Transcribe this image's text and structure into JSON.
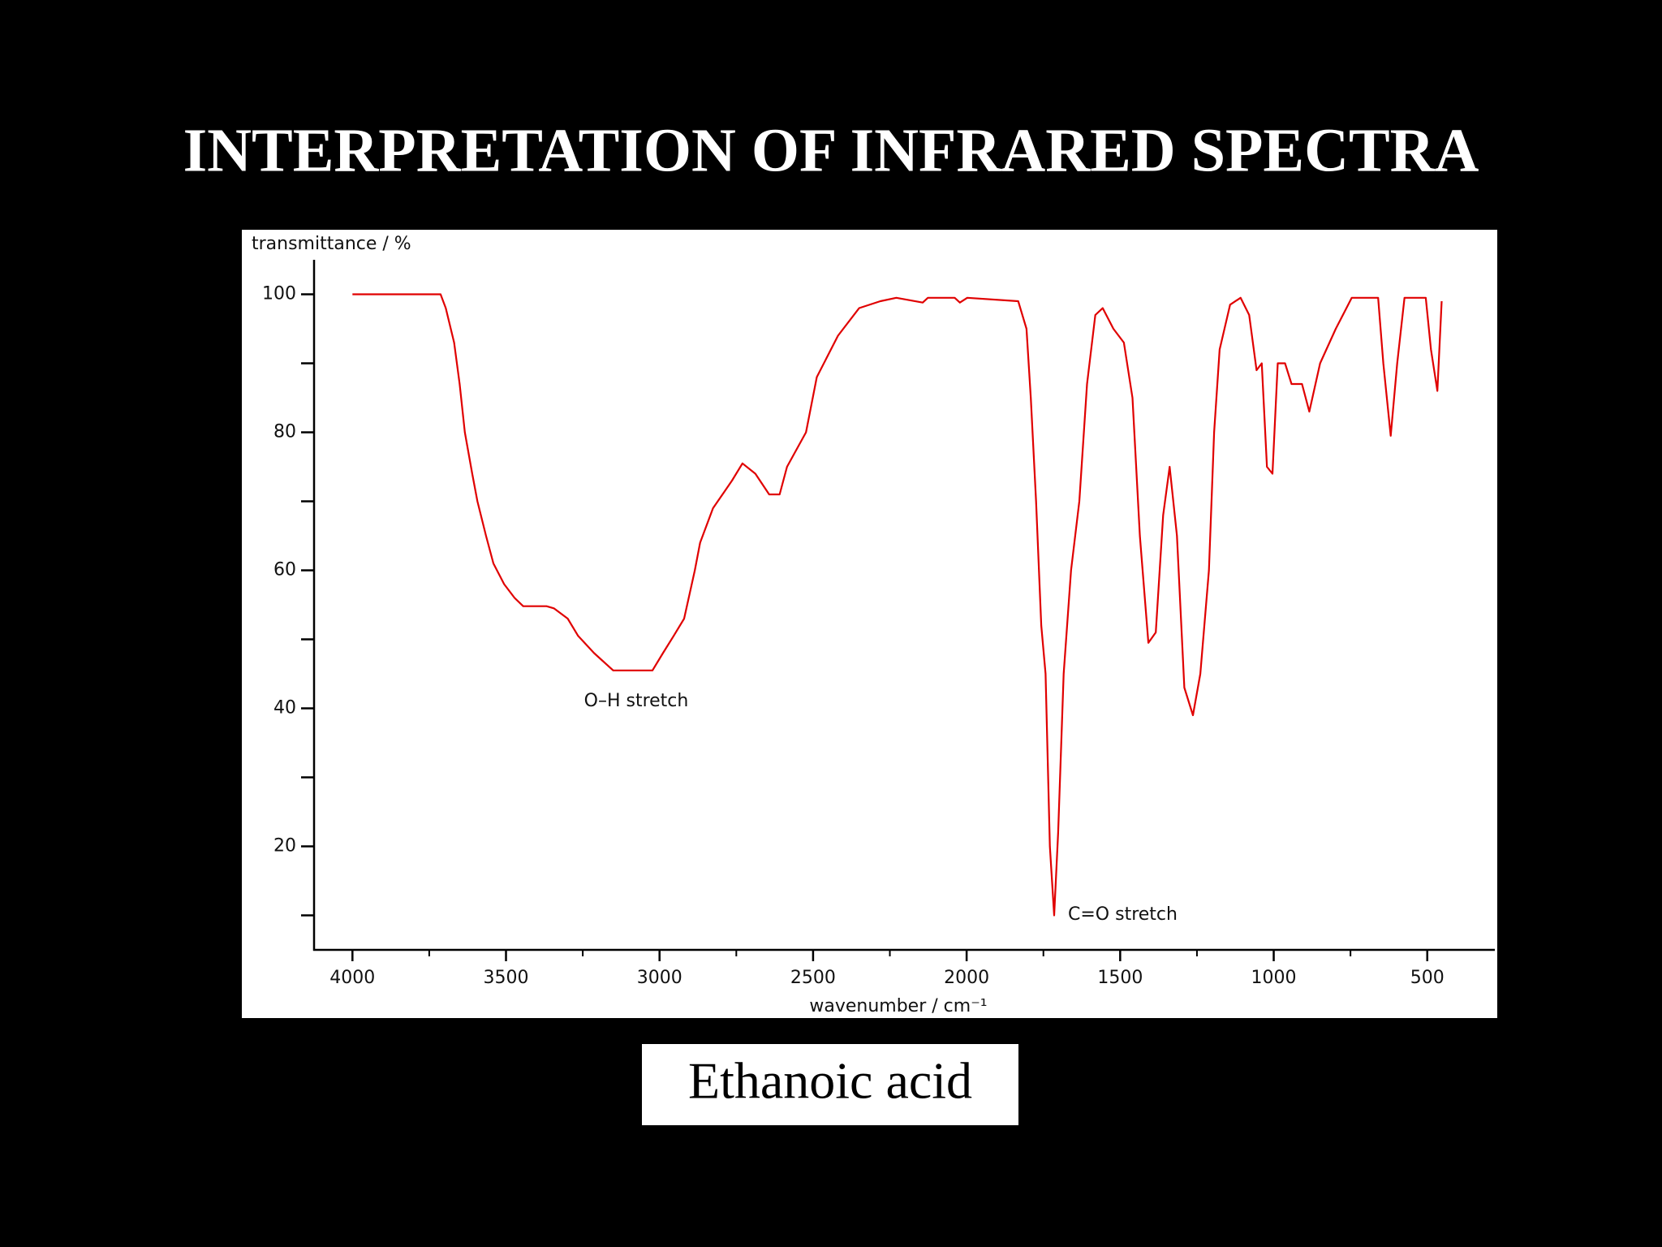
{
  "title": "INTERPRETATION OF INFRARED SPECTRA",
  "caption": "Ethanoic acid",
  "chart_data": {
    "type": "line",
    "xlabel": "wavenumber / cm⁻¹",
    "ylabel": "transmittance / %",
    "annotations": [
      "O–H stretch",
      "C=O stretch"
    ],
    "x": [
      4000,
      3713,
      3696,
      3669,
      3651,
      3634,
      3610,
      3593,
      3565,
      3541,
      3506,
      3472,
      3444,
      3368,
      3344,
      3299,
      3265,
      3213,
      3151,
      3023,
      2989,
      2954,
      2920,
      2885,
      2868,
      2826,
      2764,
      2730,
      2688,
      2643,
      2609,
      2585,
      2523,
      2488,
      2419,
      2350,
      2281,
      2229,
      2143,
      2126,
      2039,
      2022,
      1998,
      1832,
      1805,
      1791,
      1774,
      1757,
      1743,
      1729,
      1715,
      1702,
      1684,
      1660,
      1633,
      1608,
      1581,
      1557,
      1522,
      1488,
      1460,
      1436,
      1408,
      1384,
      1360,
      1339,
      1315,
      1291,
      1263,
      1239,
      1211,
      1194,
      1176,
      1142,
      1108,
      1080,
      1056,
      1039,
      1022,
      1004,
      987,
      963,
      942,
      908,
      884,
      849,
      798,
      746,
      660,
      643,
      619,
      598,
      574,
      505,
      488,
      467,
      453
    ],
    "series": [
      {
        "color": "#e00000",
        "values": [
          100,
          100,
          98,
          93,
          87,
          80,
          74,
          70,
          65,
          61,
          58,
          56,
          54.8,
          54.8,
          54.5,
          53,
          50.5,
          48,
          45.5,
          45.5,
          48,
          50.5,
          53,
          60,
          64,
          69,
          73,
          75.5,
          74,
          71,
          71,
          75,
          80,
          88,
          94,
          98,
          99,
          99.5,
          98.8,
          99.5,
          99.5,
          98.8,
          99.5,
          99,
          95,
          85,
          70,
          52,
          45,
          20,
          10,
          22,
          45,
          60,
          70,
          87,
          97,
          98,
          95,
          93,
          85,
          65,
          49.5,
          51,
          68,
          75,
          65,
          43,
          39,
          45,
          60,
          80,
          92,
          98.5,
          99.5,
          97,
          89,
          90,
          75,
          74,
          90,
          90,
          87,
          87,
          83,
          90,
          95,
          99.5,
          99.5,
          90,
          79.5,
          90,
          99.5,
          99.5,
          92,
          86,
          99
        ]
      }
    ],
    "xlim": [
      4125,
      280
    ],
    "ylim": [
      5,
      105
    ],
    "xticks": [
      4000,
      3500,
      3000,
      2500,
      2000,
      1500,
      1000,
      500
    ],
    "xticks_minor": [
      3750,
      3250,
      2750,
      2250,
      1750,
      1250,
      750
    ],
    "yticks": [
      20,
      40,
      60,
      80,
      100
    ],
    "yticks_minor": [
      10,
      30,
      50,
      70,
      90
    ]
  }
}
